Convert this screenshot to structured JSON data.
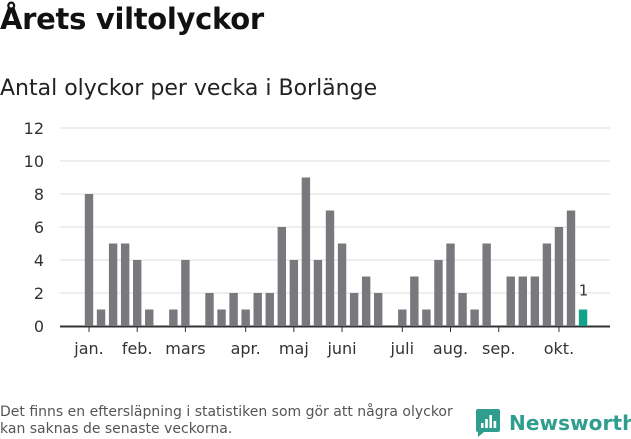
{
  "header": {
    "title": "Årets viltolyckor",
    "subtitle": "Antal olyckor per vecka i Borlänge"
  },
  "footer": {
    "note": "Det finns en eftersläpning i statistiken som gör att några olyckor kan saknas de senaste veckorna.",
    "brand": "Newsworthy"
  },
  "colors": {
    "bar": "#78787d",
    "highlight": "#12a38d",
    "grid": "#dddddd",
    "axis": "#333333",
    "brand": "#2f9e8f"
  },
  "chart_data": {
    "type": "bar",
    "title": "Antal olyckor per vecka i Borlänge",
    "xlabel": "",
    "ylabel": "",
    "ylim": [
      0,
      12
    ],
    "yticks": [
      "0",
      "2",
      "4",
      "6",
      "8",
      "10",
      "12"
    ],
    "xticks": [
      {
        "label": "jan.",
        "week": 1
      },
      {
        "label": "feb.",
        "week": 5
      },
      {
        "label": "mars",
        "week": 9
      },
      {
        "label": "apr.",
        "week": 14
      },
      {
        "label": "maj",
        "week": 18
      },
      {
        "label": "juni",
        "week": 22
      },
      {
        "label": "juli",
        "week": 27
      },
      {
        "label": "aug.",
        "week": 31
      },
      {
        "label": "sep.",
        "week": 35
      },
      {
        "label": "okt.",
        "week": 40
      }
    ],
    "weeks": [
      1,
      2,
      3,
      4,
      5,
      6,
      7,
      8,
      9,
      10,
      11,
      12,
      13,
      14,
      15,
      16,
      17,
      18,
      19,
      20,
      21,
      22,
      23,
      24,
      25,
      26,
      27,
      28,
      29,
      30,
      31,
      32,
      33,
      34,
      35,
      36,
      37,
      38,
      39,
      40,
      41
    ],
    "values": [
      8,
      1,
      5,
      5,
      4,
      1,
      0,
      1,
      4,
      0,
      2,
      1,
      2,
      1,
      2,
      2,
      6,
      4,
      9,
      4,
      7,
      5,
      2,
      3,
      2,
      0,
      1,
      3,
      1,
      4,
      5,
      2,
      1,
      5,
      0,
      3,
      3,
      3,
      5,
      6,
      7
    ],
    "current": {
      "week": 42,
      "value": 1,
      "label": "1"
    }
  }
}
